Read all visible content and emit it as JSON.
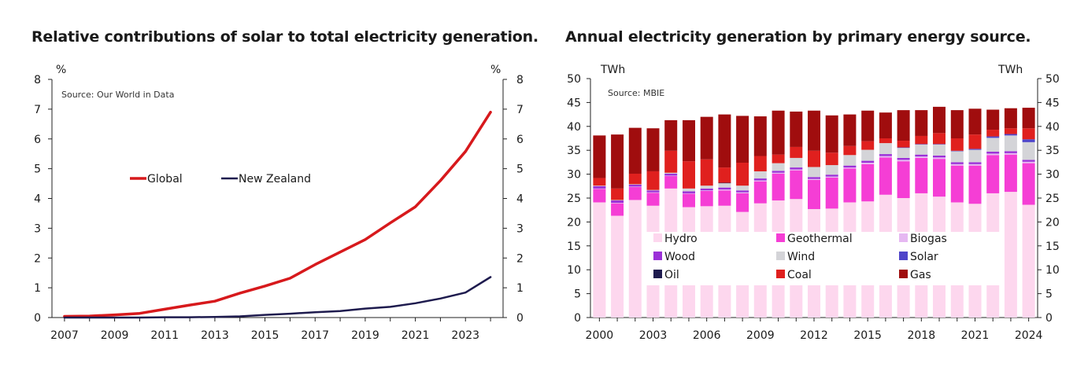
{
  "chart_data": [
    {
      "type": "line",
      "title": "Relative contributions of solar to total electricity generation.",
      "unit_left": "%",
      "unit_right": "%",
      "source": "Source: Our World in Data",
      "ylim": [
        0,
        8
      ],
      "yticks": [
        "0",
        "1",
        "2",
        "3",
        "4",
        "5",
        "6",
        "7",
        "8"
      ],
      "xlim": [
        2006.5,
        2024.5
      ],
      "xticks": [
        "2007",
        "2009",
        "2011",
        "2013",
        "2015",
        "2017",
        "2019",
        "2021",
        "2023"
      ],
      "legend_placement": "center-left",
      "grid": false,
      "x": [
        2007,
        2008,
        2009,
        2010,
        2011,
        2012,
        2013,
        2014,
        2015,
        2016,
        2017,
        2018,
        2019,
        2020,
        2021,
        2022,
        2023,
        2024
      ],
      "series": [
        {
          "name": "Global",
          "color": "#d7191c",
          "values": [
            0.04,
            0.05,
            0.09,
            0.14,
            0.28,
            0.42,
            0.55,
            0.82,
            1.06,
            1.32,
            1.78,
            2.2,
            2.62,
            3.18,
            3.72,
            4.6,
            5.58,
            6.9
          ]
        },
        {
          "name": "New Zealand",
          "color": "#1e1b4e",
          "values": [
            0.0,
            0.0,
            0.0,
            0.0,
            0.01,
            0.01,
            0.02,
            0.04,
            0.09,
            0.13,
            0.18,
            0.22,
            0.3,
            0.36,
            0.48,
            0.64,
            0.84,
            1.36
          ]
        }
      ]
    },
    {
      "type": "bar",
      "stacked": true,
      "title": "Annual electricity generation by primary energy source.",
      "unit_left": "TWh",
      "unit_right": "TWh",
      "source": "Source: MBIE",
      "ylim": [
        0,
        50
      ],
      "yticks": [
        "0",
        "5",
        "10",
        "15",
        "20",
        "25",
        "30",
        "35",
        "40",
        "45",
        "50"
      ],
      "xticks": [
        "2000",
        "2003",
        "2006",
        "2009",
        "2012",
        "2015",
        "2018",
        "2021",
        "2024"
      ],
      "legend_placement": "center",
      "grid": false,
      "categories": [
        "2000",
        "2001",
        "2002",
        "2003",
        "2004",
        "2005",
        "2006",
        "2007",
        "2008",
        "2009",
        "2010",
        "2011",
        "2012",
        "2013",
        "2014",
        "2015",
        "2016",
        "2017",
        "2018",
        "2019",
        "2020",
        "2021",
        "2022",
        "2023",
        "2024"
      ],
      "series": [
        {
          "name": "Hydro",
          "color": "#fdd7ee",
          "values": [
            24.1,
            21.3,
            24.6,
            23.4,
            27.0,
            23.1,
            23.3,
            23.4,
            22.1,
            23.9,
            24.5,
            24.8,
            22.7,
            22.8,
            24.1,
            24.3,
            25.7,
            25.0,
            26.0,
            25.3,
            24.1,
            23.8,
            26.0,
            26.3,
            23.6
          ]
        },
        {
          "name": "Geothermal",
          "color": "#f53ed5",
          "values": [
            2.8,
            2.6,
            2.7,
            2.7,
            2.6,
            2.8,
            3.2,
            3.2,
            3.9,
            4.6,
            5.6,
            6.0,
            6.1,
            6.5,
            7.1,
            7.8,
            7.8,
            7.7,
            7.4,
            7.9,
            7.7,
            8.0,
            8.0,
            7.8,
            8.7
          ]
        },
        {
          "name": "Biogas",
          "color": "#e6b8f2",
          "values": [
            0.1,
            0.1,
            0.1,
            0.1,
            0.1,
            0.1,
            0.1,
            0.2,
            0.2,
            0.2,
            0.2,
            0.2,
            0.2,
            0.2,
            0.2,
            0.3,
            0.3,
            0.3,
            0.3,
            0.3,
            0.3,
            0.3,
            0.3,
            0.3,
            0.3
          ]
        },
        {
          "name": "Wood",
          "color": "#9b30d8",
          "values": [
            0.5,
            0.5,
            0.4,
            0.4,
            0.4,
            0.4,
            0.4,
            0.4,
            0.4,
            0.4,
            0.4,
            0.4,
            0.4,
            0.4,
            0.4,
            0.4,
            0.4,
            0.4,
            0.4,
            0.4,
            0.4,
            0.4,
            0.4,
            0.4,
            0.4
          ]
        },
        {
          "name": "Wind",
          "color": "#d4d4d8",
          "values": [
            0.1,
            0.1,
            0.1,
            0.1,
            0.2,
            0.6,
            0.6,
            0.9,
            1.0,
            1.5,
            1.6,
            2.0,
            2.1,
            2.0,
            2.2,
            2.3,
            2.3,
            2.1,
            2.1,
            2.3,
            2.3,
            2.6,
            2.9,
            3.3,
            3.7
          ]
        },
        {
          "name": "Solar",
          "color": "#4f45c9",
          "values": [
            0,
            0,
            0,
            0,
            0,
            0,
            0,
            0,
            0,
            0,
            0,
            0,
            0,
            0,
            0,
            0,
            0,
            0.1,
            0.1,
            0.1,
            0.1,
            0.2,
            0.3,
            0.3,
            0.6
          ]
        },
        {
          "name": "Oil",
          "color": "#1e1b4e",
          "values": [
            0,
            0,
            0,
            0,
            0,
            0,
            0,
            0.1,
            0,
            0,
            0,
            0,
            0,
            0,
            0,
            0,
            0,
            0,
            0,
            0,
            0,
            0,
            0,
            0,
            0
          ]
        },
        {
          "name": "Coal",
          "color": "#e0201e",
          "values": [
            1.6,
            2.4,
            2.2,
            3.9,
            4.6,
            5.7,
            5.5,
            3.2,
            4.8,
            3.2,
            1.8,
            2.3,
            3.4,
            2.6,
            1.9,
            1.8,
            1.0,
            1.4,
            1.7,
            2.3,
            2.6,
            3.0,
            1.4,
            1.2,
            2.3
          ]
        },
        {
          "name": "Gas",
          "color": "#a00d0e",
          "values": [
            8.9,
            11.3,
            9.6,
            9.0,
            6.4,
            8.6,
            8.9,
            11.1,
            9.8,
            8.3,
            9.2,
            7.4,
            8.4,
            7.8,
            6.6,
            6.4,
            5.4,
            6.4,
            5.4,
            5.5,
            5.9,
            5.4,
            4.2,
            4.2,
            4.3
          ]
        }
      ]
    }
  ]
}
